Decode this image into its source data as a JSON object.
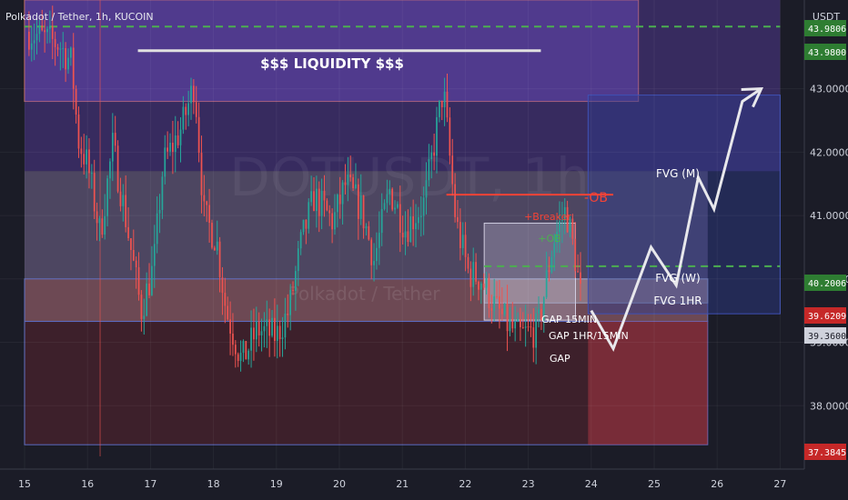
{
  "header": {
    "symbol_line": "Polkadot / Tether, 1h, KUCOIN",
    "currency": "USDT"
  },
  "watermark": {
    "big": "DOTUSDT, 1h",
    "small": "Polkadot / Tether"
  },
  "annotations": {
    "liquidity": "$$$ LIQUIDITY $$$",
    "ob": "-OB",
    "breaker": "+Breaker",
    "ob_plus": "+OB",
    "fvg_m": "FVG (M)",
    "fvg_w": "FVG (W)",
    "fvg_1hr": "FVG 1HR",
    "gap_15min": "GAP 15MIN",
    "gap_1hr_15min": "GAP 1HR/15MIN",
    "gap": "GAP"
  },
  "price_badges": [
    {
      "label": "43.9806",
      "color": "#2e7d32"
    },
    {
      "label": "43.9800",
      "color": "#2e7d32"
    },
    {
      "label": "40.2006",
      "color": "#2e7d32"
    },
    {
      "label": "39.6209",
      "color": "#c62828"
    },
    {
      "label": "39.3600",
      "color": "#cfd2dc"
    },
    {
      "label": "37.3845",
      "color": "#c62828"
    }
  ],
  "colors": {
    "bull": "#26a69a",
    "bear": "#ef5350",
    "green_dash": "#4caf50",
    "ob_line": "#f44336",
    "zone_blue": "#3f51b5"
  },
  "chart_data": {
    "type": "candlestick",
    "title": "Polkadot / Tether, 1h, KUCOIN",
    "ylabel": "USDT",
    "ylim": [
      37.0,
      44.4
    ],
    "y_ticks": [
      38.0,
      39.0,
      40.0,
      41.0,
      42.0,
      43.0
    ],
    "y_tick_labels": [
      "38.0000",
      "39.0000",
      "40.0000",
      "41.0000",
      "42.0000",
      "43.0000"
    ],
    "x_ticks": [
      "15",
      "16",
      "17",
      "18",
      "19",
      "20",
      "21",
      "22",
      "23",
      "24",
      "25",
      "26",
      "27"
    ],
    "x_start_day": 15,
    "price_path": [
      [
        15.05,
        43.9
      ],
      [
        15.55,
        43.7
      ],
      [
        15.75,
        43.4
      ],
      [
        15.85,
        42.2
      ],
      [
        16.0,
        41.8
      ],
      [
        16.2,
        40.7
      ],
      [
        16.4,
        42.1
      ],
      [
        16.6,
        41.0
      ],
      [
        16.85,
        39.5
      ],
      [
        17.05,
        40.2
      ],
      [
        17.2,
        41.8
      ],
      [
        17.5,
        42.4
      ],
      [
        17.7,
        43.1
      ],
      [
        17.85,
        41.0
      ],
      [
        18.05,
        40.6
      ],
      [
        18.2,
        39.5
      ],
      [
        18.45,
        38.7
      ],
      [
        18.7,
        39.2
      ],
      [
        19.0,
        39.1
      ],
      [
        19.2,
        39.5
      ],
      [
        19.4,
        40.6
      ],
      [
        19.6,
        41.3
      ],
      [
        19.9,
        40.9
      ],
      [
        20.1,
        41.5
      ],
      [
        20.35,
        41.1
      ],
      [
        20.55,
        40.3
      ],
      [
        20.8,
        41.4
      ],
      [
        21.05,
        40.8
      ],
      [
        21.35,
        41.2
      ],
      [
        21.65,
        43.0
      ],
      [
        21.85,
        40.9
      ],
      [
        22.05,
        40.1
      ],
      [
        22.25,
        40.0
      ],
      [
        22.45,
        39.6
      ],
      [
        22.65,
        39.3
      ],
      [
        22.85,
        39.1
      ],
      [
        23.15,
        39.2
      ],
      [
        23.4,
        40.6
      ],
      [
        23.6,
        41.1
      ],
      [
        23.75,
        40.3
      ],
      [
        23.85,
        39.6
      ]
    ],
    "candle_count": 212,
    "projection": [
      [
        24.0,
        39.5
      ],
      [
        24.35,
        38.9
      ],
      [
        24.95,
        40.5
      ],
      [
        25.35,
        39.9
      ],
      [
        25.7,
        41.6
      ],
      [
        25.95,
        41.1
      ],
      [
        26.4,
        42.8
      ],
      [
        26.7,
        43.0
      ]
    ],
    "zones": [
      {
        "name": "premium-zone",
        "x1": 15.0,
        "x2": 24.75,
        "y1": 42.8,
        "y2": 44.4,
        "color": "#6b4fbf"
      },
      {
        "name": "upper-band",
        "x1": 15.0,
        "x2": 27.0,
        "y1": 41.7,
        "y2": 44.4,
        "color": "#5b3fa5"
      },
      {
        "name": "fvg-m-zone",
        "x1": 15.0,
        "x2": 25.85,
        "y1": 40.0,
        "y2": 41.7,
        "color": "#8c7aa8"
      },
      {
        "name": "fvg-w-zone",
        "x1": 15.0,
        "x2": 25.85,
        "y1": 39.33,
        "y2": 40.0,
        "color": "#b0707a"
      },
      {
        "name": "discount-zone",
        "x1": 15.0,
        "x2": 25.85,
        "y1": 37.3845,
        "y2": 39.33,
        "color": "#5a2530"
      },
      {
        "name": "fvg-1hr-box",
        "x1": 22.3,
        "x2": 25.85,
        "y1": 39.6209,
        "y2": 40.0,
        "color": "#c9c9d4"
      },
      {
        "name": "breaker-box",
        "x1": 22.3,
        "x2": 23.75,
        "y1": 39.35,
        "y2": 40.88,
        "color": "#b5b0c8"
      },
      {
        "name": "right-red-box",
        "x1": 23.95,
        "x2": 25.85,
        "y1": 37.3845,
        "y2": 39.33,
        "color": "#c23b4a"
      },
      {
        "name": "right-blue-box",
        "x1": 23.95,
        "x2": 27.0,
        "y1": 39.45,
        "y2": 42.9,
        "color": "#2f3b8f"
      }
    ],
    "levels": [
      {
        "name": "liquidity-line",
        "value": 43.6,
        "x1": 16.8,
        "x2": 23.2,
        "color": "#e0e0e0"
      },
      {
        "name": "dash-top",
        "value": 43.98,
        "x1": 15.0,
        "x2": 27.0,
        "color": "#4caf50"
      },
      {
        "name": "dash-mid",
        "value": 40.2006,
        "x1": 22.3,
        "x2": 27.0,
        "color": "#4caf50"
      },
      {
        "name": "ob-line",
        "value": 41.33,
        "x1": 21.7,
        "x2": 24.35,
        "color": "#f44336"
      }
    ]
  }
}
